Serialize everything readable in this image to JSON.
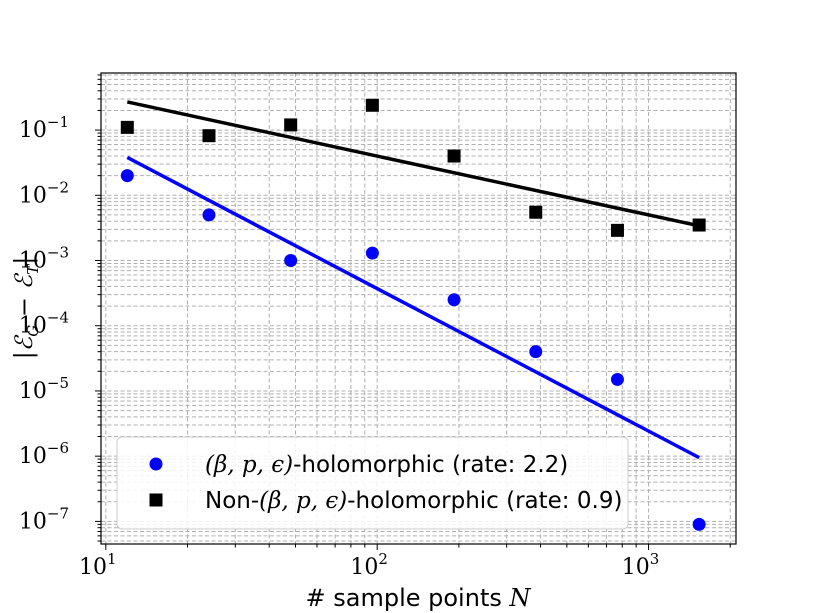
{
  "chart_data": {
    "type": "scatter",
    "xscale": "log",
    "yscale": "log",
    "xlim": [
      9.6,
      2100
    ],
    "ylim": [
      4.5e-08,
      0.75
    ],
    "xlabel": "# sample points N",
    "ylabel": "|ℰ_G − ℰ_T|",
    "x_ticks": [
      {
        "base": "10",
        "exp": "1",
        "value": 10
      },
      {
        "base": "10",
        "exp": "2",
        "value": 100
      },
      {
        "base": "10",
        "exp": "3",
        "value": 1000
      }
    ],
    "y_ticks": [
      {
        "base": "10",
        "exp": "−1",
        "value": 0.1
      },
      {
        "base": "10",
        "exp": "−2",
        "value": 0.01
      },
      {
        "base": "10",
        "exp": "−3",
        "value": 0.001
      },
      {
        "base": "10",
        "exp": "−4",
        "value": 0.0001
      },
      {
        "base": "10",
        "exp": "−5",
        "value": 1e-05
      },
      {
        "base": "10",
        "exp": "−6",
        "value": 1e-06
      },
      {
        "base": "10",
        "exp": "−7",
        "value": 1e-07
      }
    ],
    "grid": true,
    "legend_position": "lower-left",
    "series": [
      {
        "name": "(β, p, ϵ)-holomorphic (rate: 2.2)",
        "label_math": "(β, p, ϵ)",
        "label_suffix": "-holomorphic (rate: 2.2)",
        "label_prefix": "",
        "marker": "circle",
        "color": "#0000ff",
        "x": [
          12,
          24,
          48,
          96,
          192,
          384,
          768,
          1536
        ],
        "y": [
          0.02,
          0.005,
          0.001,
          0.0013,
          0.00025,
          4e-05,
          1.5e-05,
          9e-08
        ],
        "fit": {
          "x": [
            12,
            1536
          ],
          "y": [
            0.038,
            9.5e-07
          ]
        }
      },
      {
        "name": "Non-(β, p, ϵ)-holomorphic (rate: 0.9)",
        "label_prefix": "Non-",
        "label_math": "(β, p, ϵ)",
        "label_suffix": "-holomorphic (rate: 0.9)",
        "marker": "square",
        "color": "#000000",
        "x": [
          12,
          24,
          48,
          96,
          192,
          384,
          768,
          1536
        ],
        "y": [
          0.11,
          0.082,
          0.12,
          0.24,
          0.04,
          0.0055,
          0.0029,
          0.0035
        ],
        "fit": {
          "x": [
            12,
            1536
          ],
          "y": [
            0.27,
            0.0034
          ]
        }
      }
    ]
  }
}
